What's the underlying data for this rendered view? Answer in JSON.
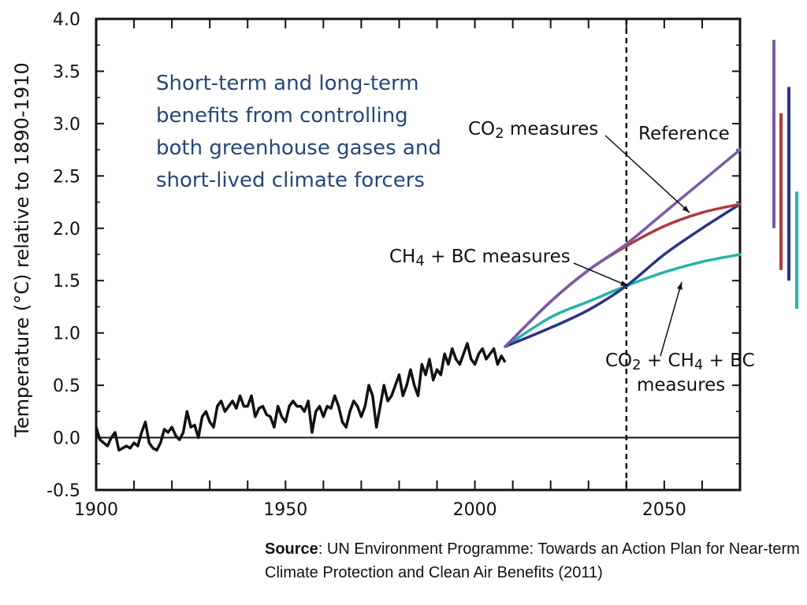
{
  "chart_data": {
    "type": "line",
    "title": "Short-term and long-term benefits from controlling both greenhouse gases and short-lived climate forcers",
    "xlabel": "",
    "ylabel": "Temperature (°C) relative to 1890-1910",
    "xlim": [
      1900,
      2070
    ],
    "ylim": [
      -0.5,
      4.0
    ],
    "xticks": [
      1900,
      1950,
      2000,
      2050
    ],
    "yticks": [
      "-0.5",
      "0.0",
      "0.5",
      "1.0",
      "1.5",
      "2.0",
      "2.5",
      "3.0",
      "3.5",
      "4.0"
    ],
    "vline": 2040,
    "observed": {
      "name": "Observed",
      "color": "#111111",
      "x": [
        1900,
        1901,
        1902,
        1903,
        1904,
        1905,
        1906,
        1907,
        1908,
        1909,
        1910,
        1911,
        1912,
        1913,
        1914,
        1915,
        1916,
        1917,
        1918,
        1919,
        1920,
        1921,
        1922,
        1923,
        1924,
        1925,
        1926,
        1927,
        1928,
        1929,
        1930,
        1931,
        1932,
        1933,
        1934,
        1935,
        1936,
        1937,
        1938,
        1939,
        1940,
        1941,
        1942,
        1943,
        1944,
        1945,
        1946,
        1947,
        1948,
        1949,
        1950,
        1951,
        1952,
        1953,
        1954,
        1955,
        1956,
        1957,
        1958,
        1959,
        1960,
        1961,
        1962,
        1963,
        1964,
        1965,
        1966,
        1967,
        1968,
        1969,
        1970,
        1971,
        1972,
        1973,
        1974,
        1975,
        1976,
        1977,
        1978,
        1979,
        1980,
        1981,
        1982,
        1983,
        1984,
        1985,
        1986,
        1987,
        1988,
        1989,
        1990,
        1991,
        1992,
        1993,
        1994,
        1995,
        1996,
        1997,
        1998,
        1999,
        2000,
        2001,
        2002,
        2003,
        2004,
        2005,
        2006,
        2007,
        2008
      ],
      "values": [
        0.1,
        -0.02,
        -0.05,
        -0.08,
        0.0,
        0.05,
        -0.12,
        -0.1,
        -0.08,
        -0.1,
        -0.05,
        -0.08,
        0.05,
        0.15,
        -0.05,
        -0.1,
        -0.12,
        -0.05,
        0.08,
        0.05,
        0.1,
        0.02,
        -0.02,
        0.05,
        0.25,
        0.1,
        0.12,
        0.0,
        0.2,
        0.25,
        0.15,
        0.1,
        0.3,
        0.35,
        0.25,
        0.3,
        0.35,
        0.28,
        0.4,
        0.3,
        0.3,
        0.4,
        0.2,
        0.28,
        0.3,
        0.22,
        0.2,
        0.1,
        0.3,
        0.2,
        0.15,
        0.3,
        0.35,
        0.3,
        0.3,
        0.25,
        0.35,
        0.05,
        0.25,
        0.3,
        0.2,
        0.3,
        0.28,
        0.4,
        0.3,
        0.15,
        0.1,
        0.25,
        0.35,
        0.3,
        0.2,
        0.3,
        0.5,
        0.4,
        0.1,
        0.3,
        0.5,
        0.35,
        0.4,
        0.5,
        0.6,
        0.4,
        0.5,
        0.65,
        0.5,
        0.4,
        0.7,
        0.6,
        0.75,
        0.55,
        0.65,
        0.6,
        0.8,
        0.7,
        0.85,
        0.75,
        0.7,
        0.8,
        0.9,
        0.75,
        0.7,
        0.8,
        0.85,
        0.75,
        0.8,
        0.85,
        0.7,
        0.78,
        0.72
      ]
    },
    "series": [
      {
        "name": "Reference",
        "color": "#7b5aa6",
        "x": [
          2008,
          2020,
          2030,
          2040,
          2050,
          2060,
          2070
        ],
        "values": [
          0.87,
          1.3,
          1.6,
          1.85,
          2.15,
          2.45,
          2.75
        ]
      },
      {
        "name": "CO2 measures",
        "color": "#b03a3a",
        "x": [
          2008,
          2020,
          2030,
          2040,
          2050,
          2060,
          2070
        ],
        "values": [
          0.87,
          1.3,
          1.6,
          1.83,
          2.02,
          2.15,
          2.23
        ]
      },
      {
        "name": "CH4 + BC measures",
        "color": "#2a3585",
        "x": [
          2008,
          2020,
          2030,
          2040,
          2050,
          2060,
          2070
        ],
        "values": [
          0.87,
          1.05,
          1.22,
          1.45,
          1.75,
          2.0,
          2.23
        ]
      },
      {
        "name": "CO2 + CH4 + BC measures",
        "color": "#26b3a8",
        "x": [
          2008,
          2020,
          2030,
          2040,
          2050,
          2060,
          2070
        ],
        "values": [
          0.87,
          1.15,
          1.3,
          1.45,
          1.58,
          1.68,
          1.75
        ]
      }
    ],
    "range_bars": [
      {
        "series": "Reference",
        "color": "#7b5aa6",
        "low": 2.0,
        "high": 3.8
      },
      {
        "series": "CO2 measures",
        "color": "#b03a3a",
        "low": 1.6,
        "high": 3.1
      },
      {
        "series": "CH4 + BC measures",
        "color": "#2a3585",
        "low": 1.5,
        "high": 3.35
      },
      {
        "series": "CO2 + CH4 + BC measures",
        "color": "#26b3a8",
        "low": 1.23,
        "high": 2.35
      }
    ],
    "annotations": [
      {
        "text": "CO2 measures"
      },
      {
        "text": "Reference"
      },
      {
        "text": "CH4 + BC measures"
      },
      {
        "text": "CO2 + CH4 + BC"
      },
      {
        "text": "measures"
      }
    ]
  },
  "source_label": "Source",
  "source_text": ": UN Environment Programme: Towards an Action Plan for Near-term Climate Protection and Clean Air Benefits (2011)"
}
